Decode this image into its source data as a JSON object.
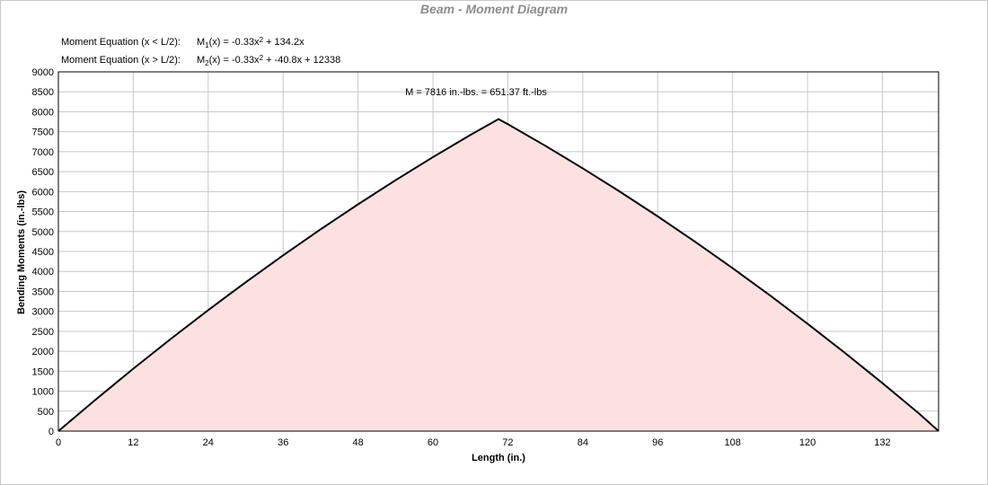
{
  "chart_data": {
    "type": "area",
    "title": "Beam - Moment Diagram",
    "x_label": "Length (in.)",
    "y_label": "Bending Moments (in.-lbs)",
    "equations": [
      {
        "label": "Moment Equation (x < L/2):",
        "parts": [
          "M",
          "1",
          "(x) = -0.33x",
          "2",
          " + 134.2x"
        ]
      },
      {
        "label": "Moment Equation (x > L/2):",
        "parts": [
          "M",
          "2",
          "(x) = -0.33x",
          "2",
          " + -40.8x + 12338"
        ]
      }
    ],
    "annotation": "M = 7816 in.-lbs. = 651.37 ft.-lbs",
    "x": [
      0,
      6,
      12,
      18,
      24,
      30,
      36,
      42,
      48,
      54,
      60,
      66,
      70.5,
      72,
      78,
      84,
      90,
      96,
      102,
      108,
      114,
      120,
      126,
      132,
      138,
      141
    ],
    "series": [
      {
        "name": "Moment",
        "color": "#000000",
        "fill": "#fde1e1",
        "values": [
          0,
          793.3,
          1562.9,
          2308.7,
          3030.7,
          3729,
          4403.5,
          5054.3,
          5681.3,
          6284.5,
          6864,
          7419.7,
          7816,
          7689.7,
          7147.9,
          6582.3,
          5993,
          5379.9,
          4743.1,
          4082.5,
          3398.1,
          2690,
          1958.1,
          1202.5,
          423.1,
          0
        ]
      }
    ],
    "xlim": [
      0,
      141
    ],
    "xticks": [
      0,
      12,
      24,
      36,
      48,
      60,
      72,
      84,
      96,
      108,
      120,
      132
    ],
    "ylim": [
      0,
      9000
    ],
    "yticks": [
      0,
      500,
      1000,
      1500,
      2000,
      2500,
      3000,
      3500,
      4000,
      4500,
      5000,
      5500,
      6000,
      6500,
      7000,
      7500,
      8000,
      8500,
      9000
    ],
    "grid": true
  }
}
